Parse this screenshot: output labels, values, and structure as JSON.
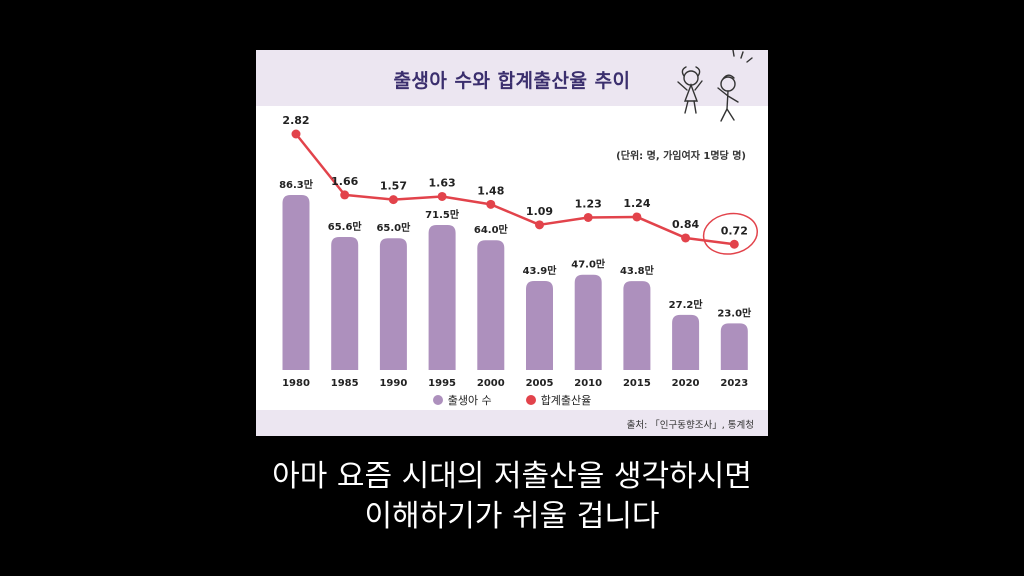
{
  "chart": {
    "title": "출생아 수와 합계출산율 추이",
    "unit_note": "(단위: 명, 가임여자 1명당 명)",
    "source": "출처: 「인구동향조사」, 통계청",
    "legend_bar": "출생아 수",
    "legend_line": "합계출산율"
  },
  "colors": {
    "bar": "#ad90bd",
    "line": "#e2434b",
    "title": "#3b2f6e",
    "band": "#ece6f1"
  },
  "subtitle": {
    "line1": "아마 요즘 시대의 저출산을 생각하시면",
    "line2": "이해하기가 쉬울 겁니다"
  },
  "chart_data": {
    "type": "bar",
    "categories": [
      "1980",
      "1985",
      "1990",
      "1995",
      "2000",
      "2005",
      "2010",
      "2015",
      "2020",
      "2023"
    ],
    "series": [
      {
        "name": "출생아 수",
        "type": "bar",
        "values": [
          86.3,
          65.6,
          65.0,
          71.5,
          64.0,
          43.9,
          47.0,
          43.8,
          27.2,
          23.0
        ],
        "labels": [
          "86.3만",
          "65.6만",
          "65.0만",
          "71.5만",
          "64.0만",
          "43.9만",
          "47.0만",
          "43.8만",
          "27.2만",
          "23.0만"
        ]
      },
      {
        "name": "합계출산율",
        "type": "line",
        "values": [
          2.82,
          1.66,
          1.57,
          1.63,
          1.48,
          1.09,
          1.23,
          1.24,
          0.84,
          0.72
        ],
        "labels": [
          "2.82",
          "1.66",
          "1.57",
          "1.63",
          "1.48",
          "1.09",
          "1.23",
          "1.24",
          "0.84",
          "0.72"
        ]
      }
    ],
    "highlight": "2023",
    "grid": false,
    "legend_position": "bottom"
  }
}
